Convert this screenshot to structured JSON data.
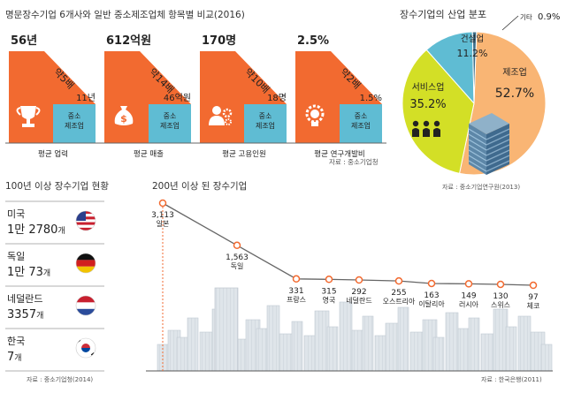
{
  "top_left": {
    "title": "명문장수기업 6개사와 일반 중소제조업체 항목별 비교(2016)",
    "source": "자료 : 중소기업청",
    "panels": [
      {
        "big_value": "56년",
        "ratio": "약5배",
        "small_value": "11년",
        "small_label": [
          "중소",
          "제조업"
        ],
        "label": "평균 업력",
        "icon": "trophy-icon"
      },
      {
        "big_value": "612억원",
        "ratio": "약14배",
        "small_value": "46억원",
        "small_label": [
          "중소",
          "제조업"
        ],
        "label": "평균 매출",
        "icon": "money-bag-icon"
      },
      {
        "big_value": "170명",
        "ratio": "약10배",
        "small_value": "18명",
        "small_label": [
          "중소",
          "제조업"
        ],
        "label": "평균 고용인원",
        "icon": "employee-icon"
      },
      {
        "big_value": "2.5%",
        "ratio": "약2배",
        "small_value": "1.5%",
        "small_label": [
          "중소",
          "제조업"
        ],
        "label": "평균 연구개발비",
        "icon": "lightbulb-gear-icon"
      }
    ]
  },
  "pie": {
    "title": "장수기업의 산업 분포",
    "source": "자료 : 중소기업연구원(2013)",
    "slices": [
      {
        "name": "제조업",
        "value": "52.7%",
        "color": "#f9b574"
      },
      {
        "name": "서비스업",
        "value": "35.2%",
        "color": "#d3df26"
      },
      {
        "name": "건설업",
        "value": "11.2%",
        "color": "#5fbcd3"
      },
      {
        "name": "기타",
        "value": "0.9%",
        "color": "#5fbcd3"
      }
    ]
  },
  "countries": {
    "title": "100년 이상 장수기업 현황",
    "source": "자료 : 중소기업청(2014)",
    "items": [
      {
        "name": "미국",
        "value": "1만 2780",
        "unit": "개",
        "flag": "us-flag-icon"
      },
      {
        "name": "독일",
        "value": "1만 73",
        "unit": "개",
        "flag": "germany-flag-icon"
      },
      {
        "name": "네덜란드",
        "value": "3357",
        "unit": "개",
        "flag": "netherlands-flag-icon"
      },
      {
        "name": "한국",
        "value": "7",
        "unit": "개",
        "flag": "korea-flag-icon"
      }
    ]
  },
  "chart_data": [
    {
      "type": "bar",
      "title": "명문장수기업 6개사와 일반 중소제조업체 항목별 비교(2016)",
      "categories": [
        "평균 업력",
        "평균 매출",
        "평균 고용인원",
        "평균 연구개발비"
      ],
      "series": [
        {
          "name": "",
          "values": [
            "56년",
            "612억원",
            "170명",
            "2.5%"
          ]
        },
        {
          "name": "중소 제조업",
          "values": [
            "11년",
            "46억원",
            "18명",
            "1.5%"
          ]
        }
      ]
    },
    {
      "type": "pie",
      "title": "장수기업의 산업 분포",
      "categories": [
        "제조업",
        "서비스업",
        "건설업",
        "기타"
      ],
      "values": [
        52.7,
        35.2,
        11.2,
        0.9
      ]
    },
    {
      "type": "line",
      "title": "200년 이상 된 장수기업",
      "categories": [
        "일본",
        "독일",
        "프랑스",
        "영국",
        "네덜란드",
        "오스트리아",
        "이탈리아",
        "러시아",
        "스위스",
        "체코"
      ],
      "values": [
        3113,
        1563,
        331,
        315,
        292,
        255,
        163,
        149,
        130,
        97
      ],
      "value_labels": [
        "3,113",
        "1,563",
        "331",
        "315",
        "292",
        "255",
        "163",
        "149",
        "130",
        "97"
      ],
      "source": "자료 : 한국은행(2011)"
    }
  ]
}
